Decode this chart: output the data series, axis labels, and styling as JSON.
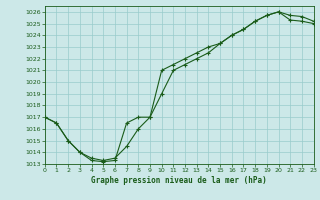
{
  "title": "Graphe pression niveau de la mer (hPa)",
  "bg_color": "#cce8e8",
  "grid_color": "#99cccc",
  "line_color": "#1a5c1a",
  "xlim": [
    0,
    23
  ],
  "ylim": [
    1013,
    1026.5
  ],
  "xticks": [
    0,
    1,
    2,
    3,
    4,
    5,
    6,
    7,
    8,
    9,
    10,
    11,
    12,
    13,
    14,
    15,
    16,
    17,
    18,
    19,
    20,
    21,
    22,
    23
  ],
  "yticks": [
    1013,
    1014,
    1015,
    1016,
    1017,
    1018,
    1019,
    1020,
    1021,
    1022,
    1023,
    1024,
    1025,
    1026
  ],
  "series1_x": [
    0,
    1,
    2,
    3,
    4,
    5,
    6,
    7,
    8,
    9,
    10,
    11,
    12,
    13,
    14,
    15,
    16,
    17,
    18,
    19,
    20,
    21,
    22,
    23
  ],
  "series1_y": [
    1017.0,
    1016.5,
    1015.0,
    1014.0,
    1013.5,
    1013.3,
    1013.5,
    1014.5,
    1016.0,
    1017.0,
    1019.0,
    1021.0,
    1021.5,
    1022.0,
    1022.5,
    1023.3,
    1024.0,
    1024.5,
    1025.2,
    1025.7,
    1026.0,
    1025.7,
    1025.6,
    1025.2
  ],
  "series2_x": [
    0,
    1,
    2,
    3,
    4,
    5,
    6,
    7,
    8,
    9,
    10,
    11,
    12,
    13,
    14,
    15,
    16,
    17,
    18,
    19,
    20,
    21,
    22,
    23
  ],
  "series2_y": [
    1017.0,
    1016.5,
    1015.0,
    1014.0,
    1013.3,
    1013.2,
    1013.3,
    1016.5,
    1017.0,
    1017.0,
    1021.0,
    1021.5,
    1022.0,
    1022.5,
    1023.0,
    1023.3,
    1024.0,
    1024.5,
    1025.2,
    1025.7,
    1026.0,
    1025.3,
    1025.2,
    1025.0
  ]
}
